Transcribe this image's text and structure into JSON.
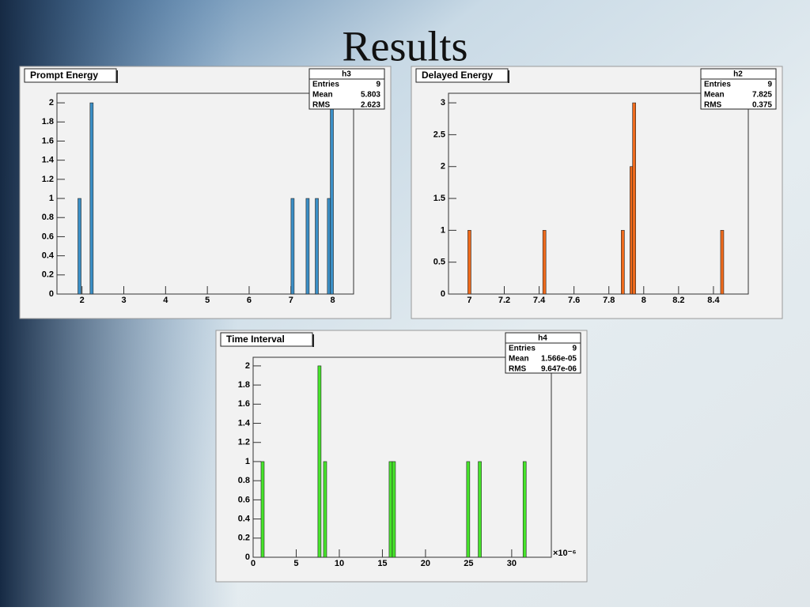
{
  "title": "Results",
  "chart_data": [
    {
      "type": "bar",
      "title": "Prompt Energy",
      "color": "#3b8fc6",
      "stats": {
        "name": "h3",
        "rows": [
          {
            "label": "Entries",
            "value": "9"
          },
          {
            "label": "Mean",
            "value": "5.803"
          },
          {
            "label": "RMS",
            "value": "2.623"
          }
        ]
      },
      "x": [
        1.94,
        2.23,
        7.04,
        7.4,
        7.62,
        7.91,
        7.98
      ],
      "values": [
        1,
        2,
        1,
        1,
        1,
        1,
        2
      ],
      "xlim": [
        1.4,
        8.5
      ],
      "xticks": [
        2,
        3,
        4,
        5,
        6,
        7,
        8
      ],
      "ylim": [
        0,
        2.1
      ],
      "yticks": [
        0,
        0.2,
        0.4,
        0.6,
        0.8,
        1,
        1.2,
        1.4,
        1.6,
        1.8,
        2
      ]
    },
    {
      "type": "bar",
      "title": "Delayed Energy",
      "color": "#ee6a1c",
      "stats": {
        "name": "h2",
        "rows": [
          {
            "label": "Entries",
            "value": "9"
          },
          {
            "label": "Mean",
            "value": "7.825"
          },
          {
            "label": "RMS",
            "value": "0.375"
          }
        ]
      },
      "x": [
        7.0,
        7.43,
        7.88,
        7.93,
        7.945,
        8.45
      ],
      "values": [
        1,
        1,
        1,
        2,
        3,
        1
      ],
      "xlim": [
        6.88,
        8.6
      ],
      "xticks": [
        7,
        7.2,
        7.4,
        7.6,
        7.8,
        8,
        8.2,
        8.4
      ],
      "ylim": [
        0,
        3.15
      ],
      "yticks": [
        0,
        0.5,
        1,
        1.5,
        2,
        2.5,
        3
      ]
    },
    {
      "type": "bar",
      "title": "Time Interval",
      "color": "#46e52a",
      "stats": {
        "name": "h4",
        "rows": [
          {
            "label": "Entries",
            "value": "9"
          },
          {
            "label": "Mean",
            "value": "1.566e-05"
          },
          {
            "label": "RMS",
            "value": "9.647e-06"
          }
        ]
      },
      "x": [
        1.1,
        7.7,
        8.35,
        15.96,
        16.33,
        24.95,
        26.3,
        31.5
      ],
      "values": [
        1,
        2,
        1,
        1,
        1,
        1,
        1,
        1
      ],
      "x_multiplier": "×10⁻⁶",
      "xlim": [
        0,
        34.6
      ],
      "xticks": [
        0,
        5,
        10,
        15,
        20,
        25,
        30
      ],
      "ylim": [
        0,
        2.09
      ],
      "yticks": [
        0,
        0.2,
        0.4,
        0.6,
        0.8,
        1,
        1.2,
        1.4,
        1.6,
        1.8,
        2
      ]
    }
  ]
}
